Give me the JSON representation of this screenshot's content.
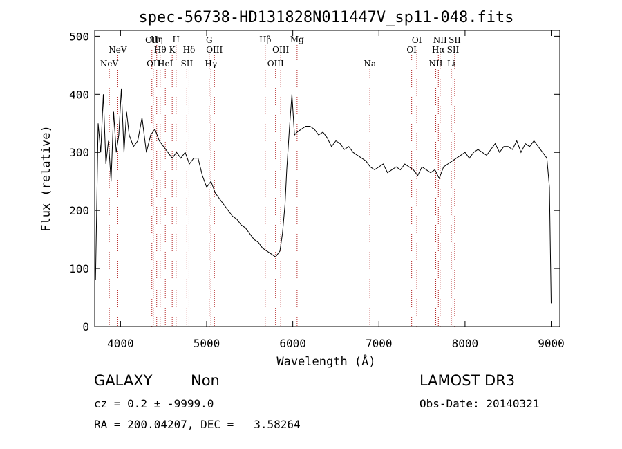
{
  "chart_data": {
    "type": "line",
    "title": "spec-56738-HD131828N011447V_sp11-048.fits",
    "xlabel": "Wavelength (Å)",
    "ylabel": "Flux (relative)",
    "xlim": [
      3700,
      9100
    ],
    "ylim": [
      0,
      510
    ],
    "xticks": [
      4000,
      5000,
      6000,
      7000,
      8000,
      9000
    ],
    "yticks": [
      0,
      100,
      200,
      300,
      400,
      500
    ],
    "grid": false,
    "line_color": "#000000",
    "marker_color": "#b22222",
    "series": [
      {
        "x": [
          3710,
          3740,
          3770,
          3800,
          3830,
          3860,
          3890,
          3920,
          3950,
          3980,
          4010,
          4040,
          4070,
          4100,
          4150,
          4200,
          4250,
          4300,
          4350,
          4400,
          4450,
          4500,
          4550,
          4600,
          4650,
          4700,
          4750,
          4800,
          4850,
          4900,
          4950,
          5000,
          5050,
          5100,
          5150,
          5200,
          5250,
          5300,
          5350,
          5400,
          5450,
          5500,
          5550,
          5600,
          5650,
          5700,
          5750,
          5800,
          5850,
          5880,
          5910,
          5930,
          5960,
          5990,
          6020,
          6050,
          6100,
          6150,
          6200,
          6250,
          6300,
          6350,
          6400,
          6450,
          6500,
          6550,
          6600,
          6650,
          6700,
          6750,
          6800,
          6850,
          6900,
          6950,
          7000,
          7050,
          7100,
          7150,
          7200,
          7250,
          7300,
          7350,
          7400,
          7450,
          7500,
          7550,
          7600,
          7650,
          7700,
          7750,
          7800,
          7850,
          7900,
          7950,
          8000,
          8050,
          8100,
          8150,
          8200,
          8250,
          8300,
          8350,
          8400,
          8450,
          8500,
          8550,
          8600,
          8650,
          8700,
          8750,
          8800,
          8850,
          8900,
          8950,
          8980,
          9000
        ],
        "y": [
          80,
          350,
          300,
          400,
          280,
          320,
          250,
          370,
          300,
          330,
          410,
          300,
          370,
          330,
          310,
          320,
          360,
          300,
          330,
          340,
          320,
          310,
          300,
          290,
          300,
          290,
          300,
          280,
          290,
          290,
          260,
          240,
          250,
          230,
          220,
          210,
          200,
          190,
          185,
          175,
          170,
          160,
          150,
          145,
          135,
          130,
          125,
          120,
          130,
          160,
          210,
          270,
          340,
          400,
          330,
          335,
          340,
          345,
          345,
          340,
          330,
          335,
          325,
          310,
          320,
          315,
          305,
          310,
          300,
          295,
          290,
          285,
          275,
          270,
          275,
          280,
          265,
          270,
          275,
          270,
          280,
          275,
          270,
          260,
          275,
          270,
          265,
          270,
          255,
          275,
          280,
          285,
          290,
          295,
          300,
          290,
          300,
          305,
          300,
          295,
          305,
          315,
          300,
          310,
          310,
          305,
          320,
          300,
          315,
          310,
          320,
          310,
          300,
          290,
          240,
          40
        ]
      }
    ],
    "line_markers": [
      {
        "x": 3869,
        "row": 0,
        "label": "NeV"
      },
      {
        "x": 3968,
        "row": 1,
        "label": "NeV"
      },
      {
        "x": 4364,
        "row": 2,
        "label": "OII"
      },
      {
        "x": 4380,
        "row": 0,
        "label": "OII"
      },
      {
        "x": 4420,
        "row": 3,
        "label": "Hη"
      },
      {
        "x": 4460,
        "row": 1,
        "label": "Hθ"
      },
      {
        "x": 4520,
        "row": 0,
        "label": "HeI"
      },
      {
        "x": 4600,
        "row": 1,
        "label": "K"
      },
      {
        "x": 4645,
        "row": 3,
        "label": "H"
      },
      {
        "x": 4770,
        "row": 0,
        "label": "SII"
      },
      {
        "x": 4795,
        "row": 1,
        "label": "Hδ"
      },
      {
        "x": 5030,
        "row": 2,
        "label": "G"
      },
      {
        "x": 5050,
        "row": 0,
        "label": "Hγ"
      },
      {
        "x": 5090,
        "row": 1,
        "label": "OIII"
      },
      {
        "x": 5680,
        "row": 3,
        "label": "Hβ"
      },
      {
        "x": 5800,
        "row": 0,
        "label": "OIII"
      },
      {
        "x": 5860,
        "row": 1,
        "label": "OIII"
      },
      {
        "x": 6050,
        "row": 3,
        "label": "Mg"
      },
      {
        "x": 6895,
        "row": 0,
        "label": "Na"
      },
      {
        "x": 7380,
        "row": 1,
        "label": "OI"
      },
      {
        "x": 7440,
        "row": 2,
        "label": "OI"
      },
      {
        "x": 7660,
        "row": 0,
        "label": "NII"
      },
      {
        "x": 7690,
        "row": 1,
        "label": "Hα"
      },
      {
        "x": 7710,
        "row": 2,
        "label": "NII"
      },
      {
        "x": 7840,
        "row": 0,
        "label": "Li"
      },
      {
        "x": 7860,
        "row": 1,
        "label": "SII"
      },
      {
        "x": 7880,
        "row": 2,
        "label": "SII"
      }
    ]
  },
  "footer": {
    "class_label": "GALAXY",
    "subclass_label": "Non",
    "survey_label": "LAMOST DR3",
    "cz_text": "cz = 0.2 ± -9999.0",
    "obs_date_text": "Obs-Date: 20140321",
    "coords_text": "RA = 200.04207, DEC =   3.58264"
  }
}
